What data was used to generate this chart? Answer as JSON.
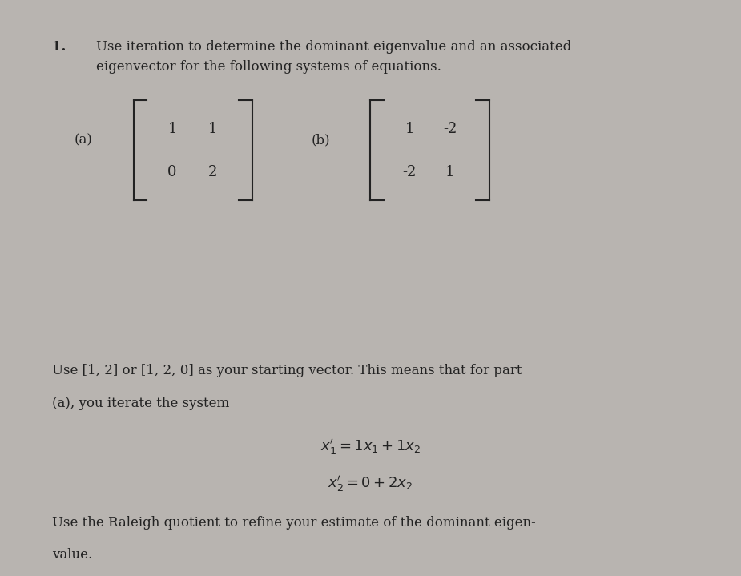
{
  "background_top": "#d8d4d0",
  "background_bottom": "#c8c4c0",
  "panel1_color": "#e8e4e0",
  "panel2_color": "#d0ccca",
  "black_bar_color": "#1a1a1a",
  "text_color": "#222222",
  "top_panel": {
    "number": "1.",
    "main_text_line1": "Use iteration to determine the dominant eigenvalue and an associated",
    "main_text_line2": "eigenvector for the following systems of equations.",
    "part_a_label": "(a)",
    "part_b_label": "(b)",
    "matrix_a": [
      [
        1,
        1
      ],
      [
        0,
        2
      ]
    ],
    "matrix_b": [
      [
        1,
        -2
      ],
      [
        -2,
        1
      ]
    ]
  },
  "bottom_panel": {
    "line1": "Use [1, 2] or [1, 2, 0] as your starting vector. This means that for part",
    "line2": "(a), you iterate the system",
    "eq1_lhs": "x₁′ =",
    "eq1_rhs": "1x₁  +  1x₂",
    "eq2_lhs": "x₂′ =",
    "eq2_rhs": "0  +  2x₂",
    "line3": "Use the Raleigh quotient to refine your estimate of the dominant eigen-",
    "line4": "value."
  }
}
